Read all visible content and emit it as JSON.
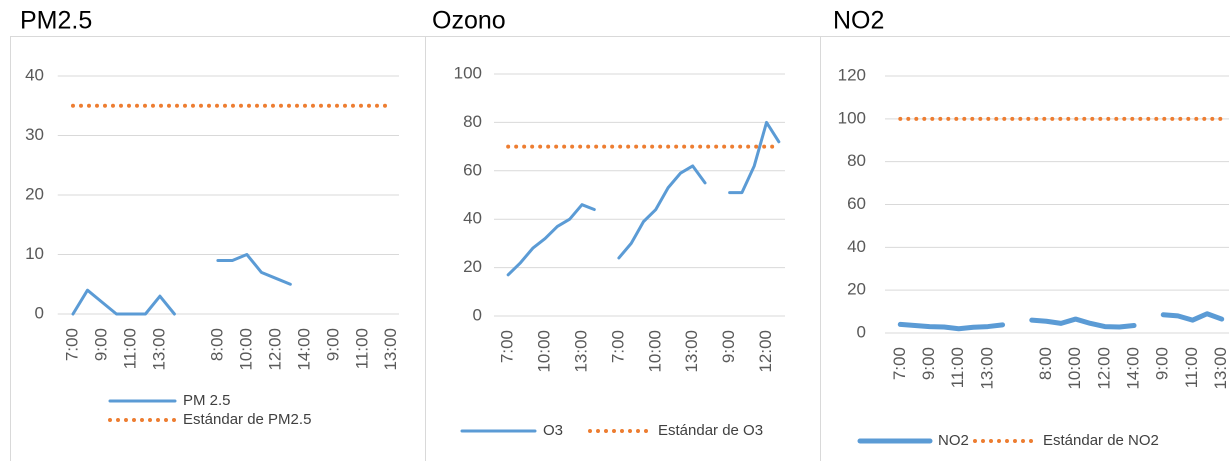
{
  "chart_data": [
    {
      "type": "line",
      "title": "PM2.5",
      "categories": [
        "7:00",
        null,
        "9:00",
        null,
        "11:00",
        null,
        "13:00",
        null,
        null,
        null,
        "8:00",
        null,
        "10:00",
        null,
        "12:00",
        null,
        "14:00",
        null,
        "9:00",
        null,
        "11:00",
        null,
        "13:00"
      ],
      "series": [
        {
          "name": "PM 2.5",
          "color": "#5b9bd5",
          "style": "solid",
          "values": [
            0,
            4,
            2,
            0,
            0,
            0,
            3,
            0,
            null,
            null,
            9,
            9,
            10,
            7,
            6,
            5,
            null,
            null,
            null,
            null,
            null,
            null,
            null
          ]
        },
        {
          "name": "Estándar de PM2.5",
          "color": "#ed7d31",
          "style": "dotted",
          "values": [
            35,
            35,
            35,
            35,
            35,
            35,
            35,
            35,
            35,
            35,
            35,
            35,
            35,
            35,
            35,
            35,
            35,
            35,
            35,
            35,
            35,
            35,
            35
          ]
        }
      ],
      "ylim": [
        0,
        40
      ],
      "yticks": [
        0,
        10,
        20,
        30,
        40
      ],
      "grid": true,
      "legend": "bottom"
    },
    {
      "type": "line",
      "title": "Ozono",
      "categories": [
        "7:00",
        null,
        null,
        "10:00",
        null,
        null,
        "13:00",
        null,
        null,
        "7:00",
        null,
        null,
        "10:00",
        null,
        null,
        "13:00",
        null,
        null,
        "9:00",
        null,
        null,
        "12:00",
        null
      ],
      "series": [
        {
          "name": "O3",
          "color": "#5b9bd5",
          "style": "solid",
          "values": [
            17,
            22,
            28,
            32,
            37,
            40,
            46,
            44,
            null,
            24,
            30,
            39,
            44,
            53,
            59,
            62,
            55,
            null,
            51,
            51,
            62,
            80,
            72
          ]
        },
        {
          "name": "Estándar de O3",
          "color": "#ed7d31",
          "style": "dotted",
          "values": [
            70,
            70,
            70,
            70,
            70,
            70,
            70,
            70,
            70,
            70,
            70,
            70,
            70,
            70,
            70,
            70,
            70,
            70,
            70,
            70,
            70,
            70,
            70
          ]
        }
      ],
      "ylim": [
        0,
        100
      ],
      "yticks": [
        0,
        20,
        40,
        60,
        80,
        100
      ],
      "grid": true,
      "legend": "bottom"
    },
    {
      "type": "line",
      "title": "NO2",
      "categories": [
        "7:00",
        null,
        "9:00",
        null,
        "11:00",
        null,
        "13:00",
        null,
        null,
        null,
        "8:00",
        null,
        "10:00",
        null,
        "12:00",
        null,
        "14:00",
        null,
        "9:00",
        null,
        "11:00",
        null,
        "13:00"
      ],
      "series": [
        {
          "name": "NO2",
          "color": "#5b9bd5",
          "style": "thick",
          "values": [
            4,
            3.5,
            3,
            2.8,
            2,
            2.7,
            3,
            3.8,
            null,
            6,
            5.5,
            4.5,
            6.5,
            4.5,
            3,
            2.8,
            3.5,
            null,
            8.5,
            8,
            6,
            9,
            6.5
          ]
        },
        {
          "name": "Estándar de NO2",
          "color": "#ed7d31",
          "style": "dotted",
          "values": [
            100,
            100,
            100,
            100,
            100,
            100,
            100,
            100,
            100,
            100,
            100,
            100,
            100,
            100,
            100,
            100,
            100,
            100,
            100,
            100,
            100,
            100,
            100
          ]
        }
      ],
      "ylim": [
        0,
        120
      ],
      "yticks": [
        0,
        20,
        40,
        60,
        80,
        100,
        120
      ],
      "grid": true,
      "legend": "bottom"
    }
  ]
}
